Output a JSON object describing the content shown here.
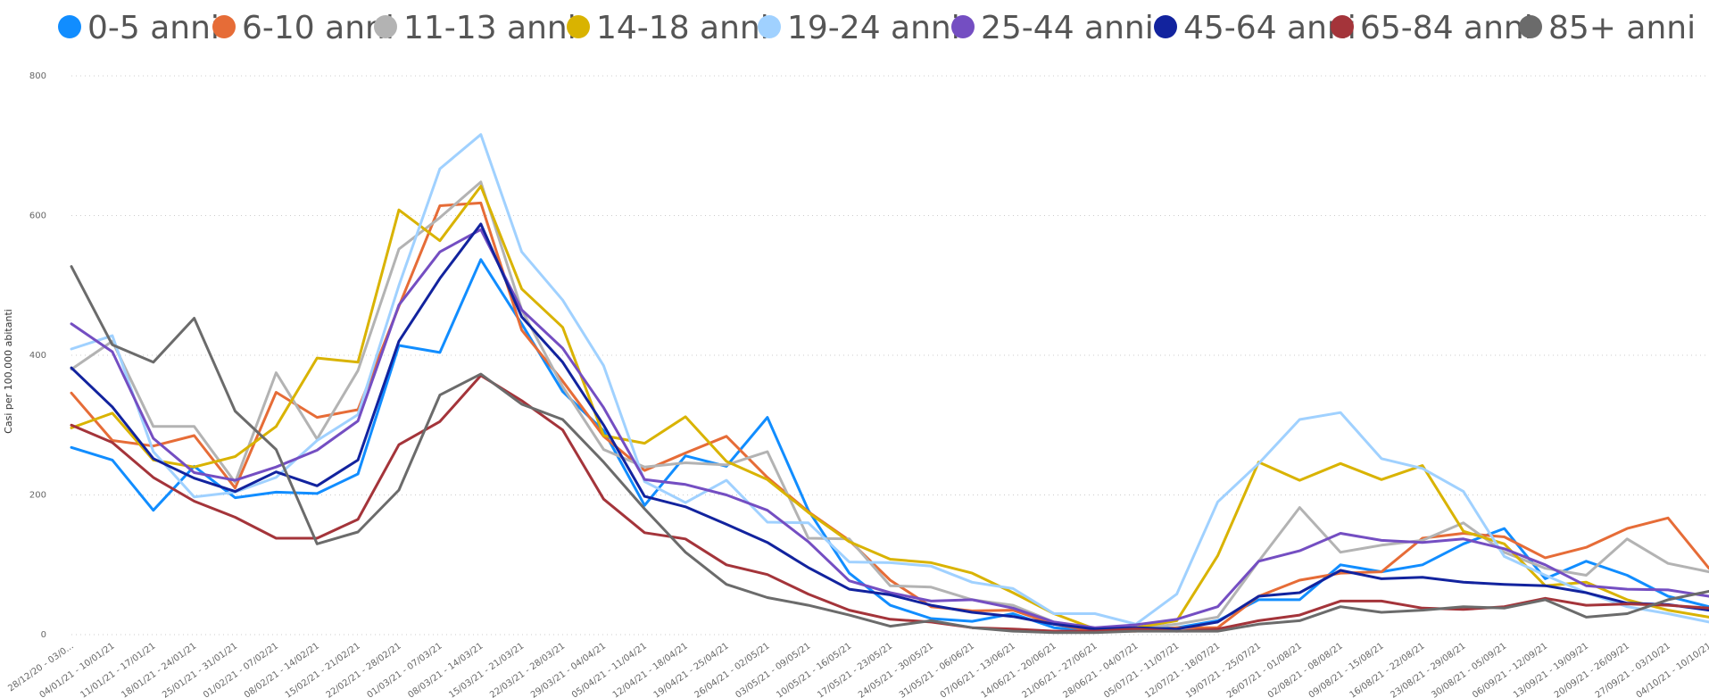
{
  "chart_data": {
    "type": "line",
    "ylabel": "Casi per 100.000 abitanti",
    "ylim": [
      0,
      800
    ],
    "yticks": [
      0,
      200,
      400,
      600,
      800
    ],
    "grid": true,
    "legend_position": "top",
    "categories": [
      "28/12/20 - 03/0...",
      "04/01/21 - 10/01/21",
      "11/01/21 - 17/01/21",
      "18/01/21 - 24/01/21",
      "25/01/21 - 31/01/21",
      "01/02/21 - 07/02/21",
      "08/02/21 - 14/02/21",
      "15/02/21 - 21/02/21",
      "22/02/21 - 28/02/21",
      "01/03/21 - 07/03/21",
      "08/03/21 - 14/03/21",
      "15/03/21 - 21/03/21",
      "22/03/21 - 28/03/21",
      "29/03/21 - 04/04/21",
      "05/04/21 - 11/04/21",
      "12/04/21 - 18/04/21",
      "19/04/21 - 25/04/21",
      "26/04/21 - 02/05/21",
      "03/05/21 - 09/05/21",
      "10/05/21 - 16/05/21",
      "17/05/21 - 23/05/21",
      "24/05/21 - 30/05/21",
      "31/05/21 - 06/06/21",
      "07/06/21 - 13/06/21",
      "14/06/21 - 20/06/21",
      "21/06/21 - 27/06/21",
      "28/06/21 - 04/07/21",
      "05/07/21 - 11/07/21",
      "12/07/21 - 18/07/21",
      "19/07/21 - 25/07/21",
      "26/07/21 - 01/08/21",
      "02/08/21 - 08/08/21",
      "09/08/21 - 15/08/21",
      "16/08/21 - 22/08/21",
      "23/08/21 - 29/08/21",
      "30/08/21 - 05/09/21",
      "06/09/21 - 12/09/21",
      "13/09/21 - 19/09/21",
      "20/09/21 - 26/09/21",
      "27/09/21 - 03/10/21",
      "04/10/21 - 10/10/21"
    ],
    "series": [
      {
        "name": "0-5 anni",
        "color": "#118DFF",
        "values": [
          268,
          250,
          178,
          241,
          196,
          204,
          202,
          230,
          414,
          404,
          537,
          445,
          348,
          292,
          185,
          256,
          241,
          311,
          178,
          88,
          42,
          23,
          19,
          30,
          10,
          5,
          8,
          10,
          20,
          50,
          50,
          100,
          90,
          100,
          130,
          152,
          80,
          105,
          85,
          55,
          40
        ]
      },
      {
        "name": "6-10 anni",
        "color": "#E66C37",
        "values": [
          346,
          278,
          270,
          285,
          210,
          347,
          311,
          322,
          470,
          614,
          618,
          436,
          363,
          284,
          235,
          260,
          284,
          225,
          176,
          135,
          78,
          40,
          34,
          35,
          15,
          5,
          5,
          10,
          10,
          55,
          78,
          88,
          90,
          138,
          145,
          140,
          110,
          125,
          152,
          167,
          95
        ]
      },
      {
        "name": "11-13 anni",
        "color": "#B3B3B3",
        "values": [
          380,
          420,
          298,
          298,
          218,
          375,
          280,
          378,
          552,
          597,
          648,
          465,
          355,
          265,
          240,
          246,
          243,
          262,
          138,
          137,
          70,
          68,
          50,
          42,
          18,
          8,
          8,
          15,
          25,
          105,
          182,
          118,
          128,
          135,
          160,
          118,
          95,
          85,
          137,
          102,
          90
        ]
      },
      {
        "name": "14-18 anni",
        "color": "#D9B300",
        "values": [
          296,
          317,
          250,
          240,
          255,
          298,
          396,
          390,
          608,
          564,
          642,
          495,
          440,
          285,
          274,
          312,
          248,
          222,
          175,
          133,
          108,
          103,
          88,
          60,
          30,
          8,
          10,
          20,
          113,
          247,
          221,
          245,
          222,
          242,
          148,
          130,
          70,
          75,
          50,
          35,
          25
        ]
      },
      {
        "name": "19-24 anni",
        "color": "#A0D1FF",
        "values": [
          409,
          428,
          262,
          197,
          204,
          225,
          278,
          315,
          500,
          667,
          716,
          548,
          479,
          385,
          219,
          189,
          221,
          161,
          160,
          104,
          103,
          98,
          75,
          66,
          30,
          30,
          15,
          58,
          190,
          245,
          308,
          318,
          252,
          238,
          205,
          112,
          85,
          60,
          40,
          30,
          18
        ]
      },
      {
        "name": "25-44 anni",
        "color": "#744EC2",
        "values": [
          445,
          405,
          281,
          232,
          221,
          240,
          264,
          306,
          472,
          548,
          580,
          465,
          410,
          325,
          222,
          215,
          200,
          178,
          133,
          77,
          60,
          48,
          50,
          38,
          18,
          10,
          14,
          22,
          40,
          105,
          120,
          145,
          135,
          132,
          137,
          123,
          100,
          70,
          65,
          64,
          55
        ]
      },
      {
        "name": "45-64 anni",
        "color": "#12239E",
        "values": [
          382,
          326,
          252,
          224,
          205,
          233,
          213,
          250,
          420,
          510,
          588,
          455,
          390,
          300,
          198,
          183,
          158,
          132,
          96,
          65,
          57,
          42,
          32,
          26,
          15,
          8,
          10,
          8,
          18,
          55,
          60,
          92,
          80,
          82,
          75,
          72,
          70,
          60,
          45,
          43,
          35
        ]
      },
      {
        "name": "65-84 anni",
        "color": "#A4343A",
        "values": [
          300,
          275,
          225,
          191,
          168,
          138,
          138,
          165,
          272,
          305,
          371,
          335,
          293,
          194,
          146,
          137,
          100,
          86,
          58,
          35,
          22,
          18,
          10,
          8,
          5,
          5,
          8,
          5,
          8,
          20,
          28,
          48,
          48,
          38,
          36,
          40,
          52,
          42,
          44,
          42,
          38
        ]
      },
      {
        "name": "85+ anni",
        "color": "#6B6B6B",
        "values": [
          527,
          415,
          390,
          453,
          320,
          265,
          130,
          147,
          207,
          343,
          373,
          330,
          308,
          247,
          180,
          118,
          72,
          53,
          42,
          28,
          12,
          20,
          10,
          5,
          3,
          3,
          5,
          5,
          5,
          15,
          20,
          40,
          32,
          35,
          40,
          38,
          50,
          25,
          30,
          50,
          62
        ]
      }
    ]
  }
}
